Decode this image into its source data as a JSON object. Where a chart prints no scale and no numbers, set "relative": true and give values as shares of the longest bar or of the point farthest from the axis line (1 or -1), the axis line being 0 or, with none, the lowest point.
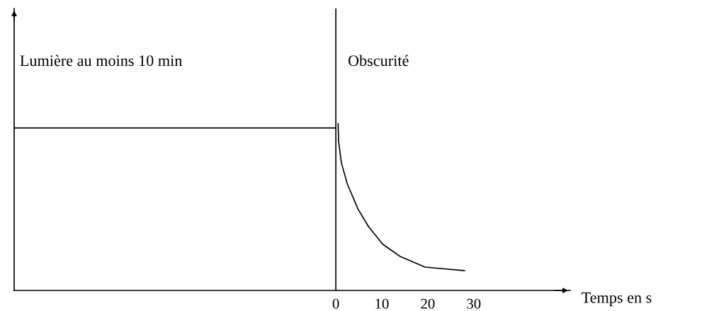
{
  "chart_data": {
    "type": "line",
    "relative": true,
    "xlabel": "Temps en s",
    "annotations": [
      "Lumière au moins 10 min",
      "Obscurité"
    ],
    "xlim": [
      -70,
      51
    ],
    "xticks": [
      0,
      10,
      20,
      30
    ],
    "series": [
      {
        "color": "#000000",
        "x": [
          -70,
          0
        ],
        "values": [
          0.974,
          0.974
        ]
      },
      {
        "color": "#000000",
        "x": [
          0.5,
          0.6,
          1.2,
          2.5,
          4.8,
          7.1,
          10.2,
          14,
          19.4,
          28
        ],
        "values": [
          1.0,
          0.894,
          0.766,
          0.638,
          0.489,
          0.383,
          0.277,
          0.204,
          0.14,
          0.119
        ]
      }
    ],
    "ref_lines": [
      {
        "axis": "x",
        "value": 0,
        "color": "#000000"
      }
    ],
    "grid": false,
    "legend": false
  }
}
